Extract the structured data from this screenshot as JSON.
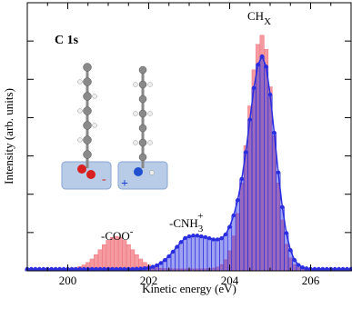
{
  "chart_data": {
    "type": "bar",
    "label": "C 1s",
    "xlabel": "Kinetic energy (eV)",
    "ylabel": "Intensity (arb. units)",
    "xlim": [
      199,
      207
    ],
    "xticks": [
      200,
      202,
      204,
      206
    ],
    "ylim": [
      0,
      7
    ],
    "yticks": [
      1,
      2,
      3,
      4,
      5,
      6
    ],
    "annotations": [
      {
        "text": "-COO",
        "sup": "-"
      },
      {
        "text": "-CNH",
        "sub": "3",
        "sup": "+"
      },
      {
        "text": "CH",
        "sub": "X"
      }
    ],
    "molecule_labels": [
      "-",
      "+"
    ],
    "x": [
      199,
      199.1,
      199.2,
      199.3,
      199.4,
      199.5,
      199.6,
      199.7,
      199.8,
      199.9,
      200,
      200.1,
      200.2,
      200.3,
      200.4,
      200.5,
      200.6,
      200.7,
      200.8,
      200.9,
      201,
      201.1,
      201.2,
      201.3,
      201.4,
      201.5,
      201.6,
      201.7,
      201.8,
      201.9,
      202,
      202.1,
      202.2,
      202.3,
      202.4,
      202.5,
      202.6,
      202.7,
      202.8,
      202.9,
      203,
      203.1,
      203.2,
      203.3,
      203.4,
      203.5,
      203.6,
      203.7,
      203.8,
      203.9,
      204,
      204.1,
      204.2,
      204.3,
      204.4,
      204.5,
      204.6,
      204.7,
      204.8,
      204.9,
      205,
      205.1,
      205.2,
      205.3,
      205.4,
      205.5,
      205.6,
      205.7,
      205.8,
      205.9,
      206,
      206.1,
      206.2,
      206.3,
      206.4,
      206.5,
      206.6,
      206.7,
      206.8,
      206.9,
      207
    ],
    "series": [
      {
        "color": "#f07880",
        "values": [
          0.05,
          0.05,
          0.05,
          0.05,
          0.05,
          0.05,
          0.05,
          0.05,
          0.05,
          0.05,
          0.057,
          0.065,
          0.081,
          0.109,
          0.153,
          0.218,
          0.308,
          0.422,
          0.551,
          0.682,
          0.795,
          0.872,
          0.9,
          0.872,
          0.795,
          0.682,
          0.551,
          0.422,
          0.308,
          0.218,
          0.153,
          0.109,
          0.081,
          0.065,
          0.057,
          0.05,
          0.05,
          0.05,
          0.05,
          0.05,
          0.05,
          0.05,
          0.05,
          0.051,
          0.052,
          0.057,
          0.069,
          0.098,
          0.162,
          0.289,
          0.522,
          0.909,
          1.496,
          2.294,
          3.267,
          4.305,
          5.248,
          5.911,
          6.15,
          5.78,
          4.801,
          3.525,
          2.294,
          1.328,
          0.693,
          0.335,
          0.162,
          0.089,
          0.062,
          0.05,
          0.05,
          0.05,
          0.05,
          0.05,
          0.05,
          0.05,
          0.05,
          0.05,
          0.05,
          0.05,
          0.05
        ]
      },
      {
        "color": "#2a2ee0",
        "values": [
          0.05,
          0.05,
          0.05,
          0.05,
          0.05,
          0.05,
          0.05,
          0.05,
          0.05,
          0.05,
          0.05,
          0.05,
          0.05,
          0.05,
          0.05,
          0.05,
          0.05,
          0.05,
          0.05,
          0.05,
          0.05,
          0.05,
          0.05,
          0.05,
          0.05,
          0.05,
          0.05,
          0.054,
          0.058,
          0.066,
          0.081,
          0.106,
          0.145,
          0.202,
          0.281,
          0.381,
          0.5,
          0.627,
          0.751,
          0.855,
          0.9,
          0.92,
          0.92,
          0.9,
          0.88,
          0.85,
          0.82,
          0.82,
          0.85,
          0.95,
          1.15,
          1.45,
          1.85,
          2.4,
          3.1,
          3.95,
          4.779,
          5.384,
          5.6,
          5.333,
          4.606,
          3.608,
          2.569,
          1.665,
          0.988,
          0.543,
          0.285,
          0.152,
          0.09,
          0.064,
          0.05,
          0.05,
          0.05,
          0.05,
          0.05,
          0.05,
          0.05,
          0.05,
          0.05,
          0.05,
          0.05
        ]
      }
    ]
  }
}
